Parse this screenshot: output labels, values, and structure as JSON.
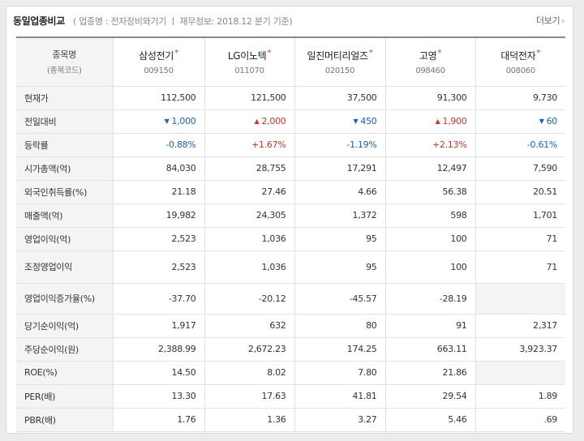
{
  "header": {
    "title": "동일업종비교",
    "subtitle": "( 업종명 : 전자장비와기기 ㅣ 재무정보: 2018.12 분기 기준)",
    "more_label": "더보기",
    "more_arrow": "›"
  },
  "table": {
    "rowhead_label": "종목명",
    "rowhead_sub": "(종목코드)",
    "star": "*",
    "stocks": [
      {
        "name": "삼성전기",
        "code": "009150"
      },
      {
        "name": "LG이노텍",
        "code": "011070"
      },
      {
        "name": "일진머티리얼즈",
        "code": "020150"
      },
      {
        "name": "고영",
        "code": "098460"
      },
      {
        "name": "대덕전자",
        "code": "008060"
      }
    ],
    "rows": [
      {
        "label": "현재가",
        "values": [
          "112,500",
          "121,500",
          "37,500",
          "91,300",
          "9,730"
        ]
      },
      {
        "label": "전일대비",
        "change": [
          {
            "dir": "down",
            "arrow": "▼",
            "value": "1,000"
          },
          {
            "dir": "up",
            "arrow": "▲",
            "value": "2,000"
          },
          {
            "dir": "down",
            "arrow": "▼",
            "value": "450"
          },
          {
            "dir": "up",
            "arrow": "▲",
            "value": "1,900"
          },
          {
            "dir": "down",
            "arrow": "▼",
            "value": "60"
          }
        ]
      },
      {
        "label": "등락률",
        "rate": [
          {
            "dir": "down",
            "value": "-0.88%"
          },
          {
            "dir": "up",
            "value": "+1.67%"
          },
          {
            "dir": "down",
            "value": "-1.19%"
          },
          {
            "dir": "up",
            "value": "+2.13%"
          },
          {
            "dir": "down",
            "value": "-0.61%"
          }
        ]
      },
      {
        "label": "시가총액(억)",
        "values": [
          "84,030",
          "28,755",
          "17,291",
          "12,497",
          "7,590"
        ]
      },
      {
        "label": "외국인취득률(%)",
        "values": [
          "21.18",
          "27.46",
          "4.66",
          "56.38",
          "20.51"
        ]
      },
      {
        "label": "매출액(억)",
        "values": [
          "19,982",
          "24,305",
          "1,372",
          "598",
          "1,701"
        ]
      },
      {
        "label": "영업이익(억)",
        "values": [
          "2,523",
          "1,036",
          "95",
          "100",
          "71"
        ]
      },
      {
        "label": "조정영업이익",
        "values": [
          "2,523",
          "1,036",
          "95",
          "100",
          "71"
        ]
      },
      {
        "label": "영업이익증가율(%)",
        "values": [
          "-37.70",
          "-20.12",
          "-45.57",
          "-28.19",
          ""
        ]
      },
      {
        "label": "당기순이익(억)",
        "values": [
          "1,917",
          "632",
          "80",
          "91",
          "2,317"
        ]
      },
      {
        "label": "주당순이익(원)",
        "values": [
          "2,388.99",
          "2,672.23",
          "174.25",
          "663.11",
          "3,923.37"
        ]
      },
      {
        "label": "ROE(%)",
        "values": [
          "14.50",
          "8.02",
          "7.80",
          "21.86",
          ""
        ]
      },
      {
        "label": "PER(배)",
        "values": [
          "13.30",
          "17.63",
          "41.81",
          "29.54",
          "1.89"
        ]
      },
      {
        "label": "PBR(배)",
        "values": [
          "1.76",
          "1.36",
          "3.27",
          "5.46",
          ".69"
        ]
      }
    ]
  },
  "colors": {
    "up": "#d93025",
    "down": "#1a5fc7",
    "header_bg": "#f4f4f4"
  }
}
